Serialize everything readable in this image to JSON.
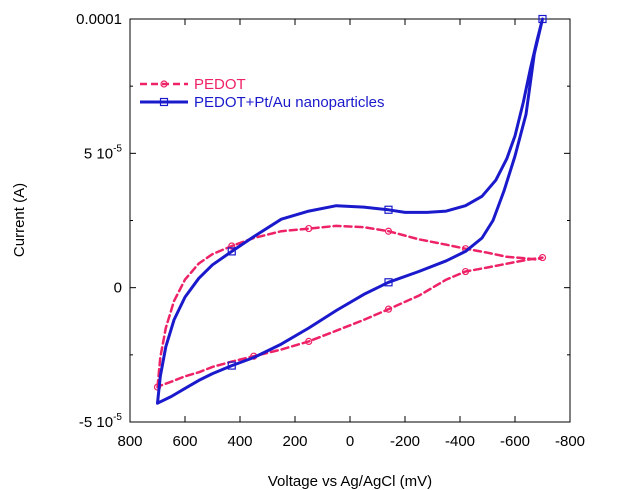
{
  "chart_data": {
    "type": "line",
    "title": "",
    "xlabel": "Voltage vs Ag/AgCl (mV)",
    "ylabel": "Current (A)",
    "xlim": [
      800,
      -800
    ],
    "ylim": [
      -5e-05,
      0.0001
    ],
    "x_ticks": [
      800,
      600,
      400,
      200,
      0,
      -200,
      -400,
      -600,
      -800
    ],
    "x_tick_labels": [
      "800",
      "600",
      "400",
      "200",
      "0",
      "-200",
      "-400",
      "-600",
      "-800"
    ],
    "y_ticks": [
      0.0001,
      5e-05,
      0,
      -5e-05
    ],
    "y_tick_labels": [
      "0.0001",
      "5 10-5",
      "0",
      "-5 10-5"
    ],
    "legend_position": "upper-left",
    "grid": false,
    "series": [
      {
        "name": "PEDOT",
        "color": "#ee2266",
        "line_style": "dashed",
        "marker": "circle",
        "x": [
          700,
          690,
          670,
          640,
          600,
          550,
          500,
          430,
          350,
          250,
          150,
          50,
          -50,
          -140,
          -250,
          -350,
          -420,
          -500,
          -570,
          -630,
          -680,
          -700,
          -650,
          -600,
          -550,
          -500,
          -420,
          -350,
          -250,
          -140,
          -50,
          50,
          150,
          250,
          350,
          430,
          500,
          550,
          600,
          650,
          690,
          700
        ],
        "y": [
          -3.7e-05,
          -2.6e-05,
          -1.5e-05,
          -5e-06,
          3e-06,
          9e-06,
          1.25e-05,
          1.55e-05,
          1.85e-05,
          2.1e-05,
          2.2e-05,
          2.3e-05,
          2.25e-05,
          2.1e-05,
          1.8e-05,
          1.6e-05,
          1.45e-05,
          1.3e-05,
          1.15e-05,
          1.1e-05,
          1.05e-05,
          1.12e-05,
          1.05e-05,
          9.5e-06,
          8.5e-06,
          7.5e-06,
          6e-06,
          3e-06,
          -3e-06,
          -8e-06,
          -1.2e-05,
          -1.6e-05,
          -2e-05,
          -2.3e-05,
          -2.55e-05,
          -2.75e-05,
          -2.95e-05,
          -3.15e-05,
          -3.3e-05,
          -3.5e-05,
          -3.65e-05,
          -3.7e-05
        ],
        "marker_x": [
          430,
          150,
          -140,
          -420,
          -700,
          -420,
          -140,
          150,
          350,
          700
        ],
        "marker_y": [
          1.55e-05,
          2.2e-05,
          2.1e-05,
          1.45e-05,
          1.12e-05,
          6e-06,
          -8e-06,
          -2e-05,
          -2.55e-05,
          -3.7e-05
        ]
      },
      {
        "name": "PEDOT+Pt/Au nanoparticles",
        "color": "#1a1acc",
        "line_style": "solid",
        "marker": "square",
        "x": [
          700,
          690,
          670,
          640,
          600,
          550,
          500,
          430,
          350,
          250,
          150,
          50,
          -50,
          -140,
          -200,
          -280,
          -350,
          -420,
          -480,
          -530,
          -570,
          -600,
          -630,
          -655,
          -680,
          -700,
          -670,
          -640,
          -600,
          -560,
          -520,
          -480,
          -420,
          -350,
          -250,
          -140,
          -50,
          50,
          150,
          250,
          350,
          430,
          500,
          550,
          600,
          650,
          700
        ],
        "y": [
          -4.3e-05,
          -3.3e-05,
          -2.2e-05,
          -1.2e-05,
          -3.5e-06,
          3.5e-06,
          8.5e-06,
          1.35e-05,
          1.9e-05,
          2.55e-05,
          2.85e-05,
          3.05e-05,
          3e-05,
          2.9e-05,
          2.8e-05,
          2.8e-05,
          2.85e-05,
          3.05e-05,
          3.4e-05,
          4e-05,
          4.8e-05,
          5.65e-05,
          6.9e-05,
          8.1e-05,
          9.2e-05,
          0.0001,
          8.7e-05,
          6.45e-05,
          4.9e-05,
          3.6e-05,
          2.5e-05,
          1.85e-05,
          1.35e-05,
          1e-05,
          6e-06,
          2e-06,
          -2.5e-06,
          -8.5e-06,
          -1.5e-05,
          -2.1e-05,
          -2.6e-05,
          -2.9e-05,
          -3.2e-05,
          -3.45e-05,
          -3.75e-05,
          -4.05e-05,
          -4.3e-05
        ],
        "marker_x": [
          430,
          -140,
          -700,
          -140,
          430
        ],
        "marker_y": [
          1.35e-05,
          2.9e-05,
          0.0001,
          2e-06,
          -2.9e-05
        ]
      }
    ]
  }
}
